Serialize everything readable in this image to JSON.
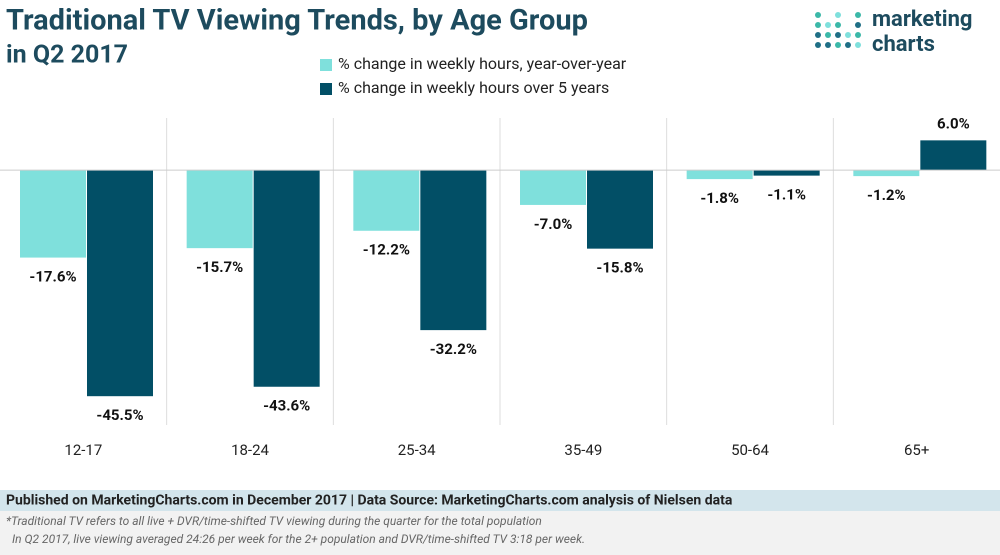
{
  "chart_data": {
    "type": "bar",
    "title": "Traditional TV Viewing Trends, by Age Group",
    "subtitle": "in Q2 2017",
    "categories": [
      "12-17",
      "18-24",
      "25-34",
      "35-49",
      "50-64",
      "65+"
    ],
    "series": [
      {
        "name": "% change in weekly hours, year-over-year",
        "color": "#7fe0dc",
        "values": [
          -17.6,
          -15.7,
          -12.2,
          -7.0,
          -1.8,
          -1.2
        ],
        "value_labels": [
          "-17.6%",
          "-15.7%",
          "-12.2%",
          "-7.0%",
          "-1.8%",
          "-1.2%"
        ]
      },
      {
        "name": "% change in weekly hours over 5 years",
        "color": "#024f66",
        "values": [
          -45.5,
          -43.6,
          -32.2,
          -15.8,
          -1.1,
          6.0
        ],
        "value_labels": [
          "-45.5%",
          "-43.6%",
          "-32.2%",
          "-15.8%",
          "-1.1%",
          "6.0%"
        ]
      }
    ],
    "ylim": [
      -51.3,
      10.5
    ]
  },
  "logo": {
    "line1": "marketing",
    "line2": "charts"
  },
  "footer": {
    "published": "Published on MarketingCharts.com in December 2017 | Data Source: MarketingCharts.com analysis of Nielsen data",
    "notes": [
      "*Traditional TV refers to all live + DVR/time-shifted TV viewing during the quarter for the total population",
      "In Q2 2017, live viewing averaged 24:26 per week for the 2+ population and DVR/time-shifted TV 3:18 per week."
    ]
  }
}
